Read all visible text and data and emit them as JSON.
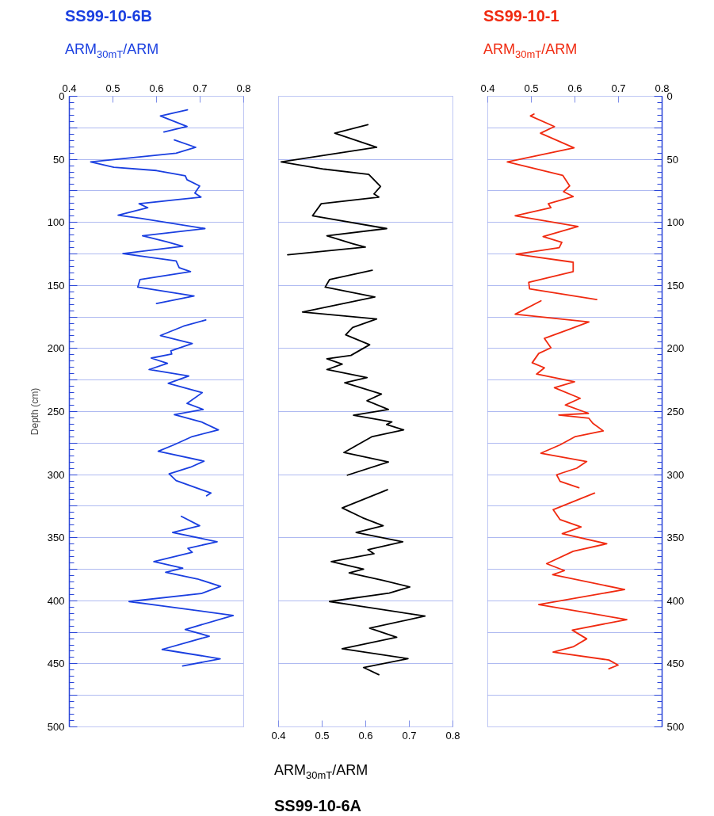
{
  "chart_data": [
    {
      "type": "line",
      "xlabel": "ARM$_{30mT}$/ARM",
      "ylabel": "Depth (cm)",
      "xlim": [
        0.4,
        0.8
      ],
      "xticks": [
        0.4,
        0.5,
        0.6,
        0.7,
        0.8
      ],
      "ylim": [
        500,
        0
      ],
      "yticks": [
        0,
        {
          "value": 25,
          "label": null
        },
        50,
        {
          "value": 75,
          "label": null
        },
        100,
        {
          "value": 125,
          "label": null
        },
        150,
        {
          "value": 175,
          "label": null
        },
        200,
        {
          "value": 225,
          "label": null
        },
        250,
        {
          "value": 275,
          "label": null
        },
        300,
        {
          "value": 325,
          "label": null
        },
        350,
        {
          "value": 375,
          "label": null
        },
        400,
        {
          "value": 425,
          "label": null
        },
        450,
        {
          "value": 475,
          "label": null
        },
        500
      ],
      "grid": "y",
      "series": [
        {
          "name": "SS99-10-6B",
          "color": "#1a3fe0",
          "x": [
            0.671,
            0.609,
            0.67,
            0.617,
            null,
            0.641,
            0.69,
            0.645,
            0.449,
            0.502,
            0.6,
            0.666,
            0.67,
            0.699,
            0.688,
            0.702,
            0.645,
            0.56,
            0.58,
            0.512,
            0.564,
            0.711,
            0.568,
            0.623,
            0.66,
            0.523,
            0.645,
            0.652,
            0.678,
            0.562,
            0.557,
            0.686,
            0.6,
            null,
            0.713,
            0.662,
            0.609,
            0.682,
            0.633,
            0.635,
            0.588,
            0.625,
            0.583,
            0.674,
            0.627,
            0.705,
            0.67,
            0.707,
            0.641,
            0.703,
            0.742,
            0.682,
            0.641,
            0.604,
            0.709,
            0.678,
            0.629,
            0.645,
            0.725,
            0.715,
            null,
            0.657,
            0.699,
            0.637,
            0.739,
            0.672,
            0.682,
            0.594,
            0.66,
            0.621,
            0.694,
            0.747,
            0.703,
            0.537,
            0.776,
            0.666,
            0.721,
            0.613,
            0.746,
            0.66
          ],
          "values": [
            10.8,
            15.6,
            24,
            28.3,
            null,
            34.6,
            40.5,
            45.1,
            52.1,
            56.3,
            58.9,
            63.1,
            66.2,
            71.1,
            76.8,
            80,
            82.1,
            85.2,
            88.4,
            94.3,
            96.8,
            104.9,
            110.6,
            115.4,
            119,
            124.7,
            130.6,
            135.9,
            139,
            145.4,
            151.3,
            158.4,
            164.3,
            null,
            177.4,
            182.3,
            189.7,
            196,
            201.9,
            204.4,
            207.6,
            211.8,
            216.7,
            221.8,
            227.6,
            235,
            243.5,
            248.3,
            252.5,
            258.2,
            264.5,
            269.8,
            276.2,
            281.5,
            289.3,
            294.1,
            299.4,
            304.7,
            314.6,
            316.7,
            null,
            333.1,
            340.5,
            345.8,
            353.2,
            358.4,
            361.6,
            369,
            374.2,
            377.4,
            382.7,
            388.6,
            394.3,
            400.6,
            411.6,
            422.8,
            428.1,
            438.6,
            446,
            451.7
          ]
        }
      ]
    },
    {
      "type": "line",
      "xlabel": "ARM$_{30mT}$/ARM",
      "xlim": [
        0.4,
        0.8
      ],
      "xticks": [
        0.4,
        0.5,
        0.6,
        0.7,
        0.8
      ],
      "ylim": [
        500,
        0
      ],
      "yticks": [
        0,
        50,
        100,
        150,
        200,
        250,
        300,
        350,
        400,
        450,
        500
      ],
      "tick_labels": "x",
      "grid": "y",
      "series": [
        {
          "name": "SS99-10-6A",
          "color": "#000000",
          "x": [
            0.605,
            0.529,
            0.625,
            0.406,
            0.505,
            0.607,
            0.634,
            0.619,
            0.63,
            0.498,
            0.478,
            0.648,
            0.511,
            0.57,
            0.599,
            0.421,
            null,
            0.615,
            0.517,
            0.507,
            0.621,
            0.455,
            0.625,
            0.57,
            0.554,
            0.609,
            0.566,
            0.511,
            0.546,
            0.511,
            0.603,
            0.552,
            0.636,
            0.603,
            0.652,
            0.572,
            0.66,
            0.648,
            0.687,
            0.615,
            0.582,
            0.55,
            0.652,
            0.558,
            null,
            0.65,
            0.546,
            0.593,
            0.64,
            0.578,
            0.685,
            0.605,
            0.619,
            0.521,
            0.595,
            0.562,
            0.64,
            0.701,
            0.654,
            0.517,
            0.736,
            0.609,
            0.671,
            0.546,
            0.697,
            0.595,
            0.63
          ],
          "values": [
            22.6,
            29.3,
            40.5,
            52.1,
            57.8,
            62,
            71.5,
            77.4,
            80,
            85.2,
            94.7,
            104.9,
            110.6,
            116.9,
            119.6,
            125.7,
            null,
            138,
            145.4,
            151.3,
            159.1,
            171.1,
            176.6,
            183.3,
            189.2,
            197,
            205.5,
            208.2,
            212.4,
            216.7,
            223,
            227.2,
            236.1,
            241.4,
            248.3,
            252.9,
            258.2,
            260.3,
            264.5,
            269.8,
            276.2,
            282.5,
            289.9,
            300.4,
            null,
            312,
            326.4,
            334.2,
            340.5,
            345.8,
            353.2,
            359.5,
            362.7,
            369,
            374.9,
            377.9,
            383.8,
            389.1,
            393.9,
            400.6,
            412.2,
            421.7,
            429,
            438.1,
            445.9,
            452.9,
            458.6
          ]
        }
      ]
    },
    {
      "type": "line",
      "xlabel": "ARM$_{30mT}$/ARM",
      "xlim": [
        0.4,
        0.8
      ],
      "grid": "y",
      "xticks": [
        0.4,
        0.5,
        0.6,
        0.7,
        0.8
      ],
      "ylim": [
        500,
        0
      ],
      "yticks": [
        0,
        {
          "value": 25,
          "label": null
        },
        50,
        {
          "value": 75,
          "label": null
        },
        100,
        {
          "value": 125,
          "label": null
        },
        150,
        {
          "value": 175,
          "label": null
        },
        200,
        {
          "value": 225,
          "label": null
        },
        250,
        {
          "value": 275,
          "label": null
        },
        300,
        {
          "value": 325,
          "label": null
        },
        350,
        {
          "value": 375,
          "label": null
        },
        400,
        {
          "value": 425,
          "label": null
        },
        450,
        {
          "value": 475,
          "label": null
        },
        500
      ],
      "series": [
        {
          "name": "SS99-10-1",
          "color": "#f02a10",
          "x": [
            0.506,
            0.498,
            0.553,
            0.521,
            0.598,
            0.445,
            0.572,
            0.588,
            0.574,
            0.596,
            0.539,
            0.545,
            0.463,
            0.607,
            0.527,
            0.57,
            0.564,
            0.465,
            0.596,
            0.596,
            0.494,
            0.496,
            0.65,
            null,
            0.522,
            0.463,
            0.632,
            0.586,
            0.53,
            0.545,
            0.517,
            0.502,
            0.53,
            0.512,
            0.599,
            0.553,
            0.612,
            0.578,
            0.631,
            0.563,
            0.632,
            0.641,
            0.665,
            0.601,
            0.566,
            0.522,
            0.627,
            0.604,
            0.558,
            0.566,
            0.609,
            null,
            0.645,
            0.55,
            0.566,
            0.614,
            0.571,
            0.673,
            0.596,
            0.535,
            0.576,
            0.549,
            0.714,
            0.517,
            0.719,
            0.594,
            0.627,
            0.596,
            0.55,
            0.678,
            0.699,
            0.678
          ],
          "values": [
            14.1,
            15.6,
            24,
            29.3,
            40.9,
            52.1,
            62.7,
            71.1,
            75.7,
            79.5,
            85.2,
            88.4,
            94.7,
            103.2,
            111.2,
            115.8,
            120,
            125.3,
            131.6,
            139,
            147.5,
            152.7,
            161.2,
            null,
            162.2,
            172.8,
            178.9,
            184.9,
            192,
            199.4,
            203.9,
            211.3,
            215.3,
            220.3,
            226.3,
            231.1,
            239.5,
            244.8,
            251.4,
            252.7,
            255.3,
            259.3,
            265.3,
            269.8,
            276.4,
            283,
            289.6,
            294.9,
            300.1,
            305.4,
            310.4,
            null,
            314.6,
            327.8,
            335.7,
            341.5,
            346.8,
            354.8,
            360.8,
            370.6,
            376.1,
            379.3,
            391.1,
            403,
            414.9,
            423.3,
            430.2,
            436.5,
            440.7,
            447,
            451,
            453.9
          ]
        }
      ]
    }
  ]
}
